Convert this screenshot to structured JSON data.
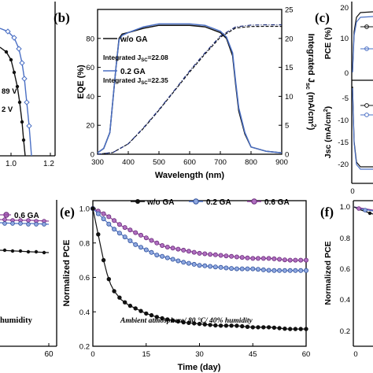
{
  "panels": {
    "a": {
      "voc_1": "89 V",
      "voc_2": "2 V",
      "x_ticks": [
        "1.0",
        "1.2"
      ]
    },
    "b": {
      "label": "(b)",
      "xlabel": "Wavelength (nm)",
      "ylabel": "EQE (%)",
      "y2label_main": "Integrated J",
      "y2label_sub": "sc",
      "y2label_end": " (mA/cm",
      "y2label_sup": "2",
      "y2label_close": ")",
      "x_ticks": [
        "300",
        "400",
        "500",
        "600",
        "700",
        "800",
        "900"
      ],
      "y_ticks": [
        "0",
        "20",
        "40",
        "60",
        "80"
      ],
      "y2_ticks": [
        "0",
        "5",
        "10",
        "15",
        "20",
        "25"
      ],
      "legend_wo": "w/o GA",
      "legend_02": "0.2 GA",
      "int_wo_main": "Integrated J",
      "int_wo_sub": "SC",
      "int_wo_val": "=22.08",
      "int_02_main": "Integrated J",
      "int_02_sub": "SC",
      "int_02_val": "=22.35"
    },
    "c": {
      "label": "(c)",
      "pce_label": "PCE (%)",
      "jsc_label_main": "Jsc (mA/cm",
      "jsc_label_sup": "2",
      "jsc_label_close": ")",
      "pce_ticks": [
        "20",
        "10",
        "0"
      ],
      "jsc_ticks": [
        "-5",
        "-10",
        "-15",
        "-20"
      ],
      "x_tick": "0"
    },
    "d": {
      "legend_06": "0.6 GA",
      "note": "humidity",
      "x_tick": "60"
    },
    "e": {
      "label": "(e)",
      "xlabel": "Time (day)",
      "ylabel": "Normalized PCE",
      "x_ticks": [
        "0",
        "15",
        "30",
        "45",
        "60"
      ],
      "y_ticks": [
        "0.2",
        "0.4",
        "0.6",
        "0.8",
        "1.0"
      ],
      "legend": [
        "w/o GA",
        "0.2 GA",
        "0.6 GA"
      ],
      "annotation": "Ambient atmosphere/ 80 °C/ 40% humidity"
    },
    "f": {
      "label": "(f)",
      "ylabel": "Normalized PCE",
      "y_ticks": [
        "1.0",
        "0.8",
        "0.6",
        "0.4",
        "0.2"
      ],
      "x_tick": "0"
    }
  },
  "colors": {
    "wo": "#111111",
    "ga02": "#4a6fc4",
    "ga06": "#8e3f9a"
  },
  "chart_data": [
    {
      "type": "line",
      "panel": "b",
      "title": "",
      "xlabel": "Wavelength (nm)",
      "ylabel": "EQE (%)",
      "xlim": [
        300,
        900
      ],
      "ylim": [
        0,
        100
      ],
      "y2lim": [
        0,
        25
      ],
      "series": [
        {
          "name": "w/o GA",
          "axis": "left",
          "x": [
            300,
            320,
            340,
            360,
            370,
            380,
            400,
            450,
            500,
            550,
            600,
            650,
            700,
            720,
            740,
            750,
            760,
            780,
            800,
            850,
            900
          ],
          "y": [
            1,
            4,
            15,
            60,
            80,
            83,
            84,
            87,
            89,
            89,
            89,
            88,
            84,
            80,
            68,
            48,
            30,
            14,
            5,
            2,
            1
          ]
        },
        {
          "name": "0.2 GA",
          "axis": "left",
          "x": [
            300,
            320,
            340,
            360,
            370,
            380,
            400,
            450,
            500,
            550,
            600,
            650,
            700,
            720,
            740,
            750,
            760,
            780,
            800,
            850,
            900
          ],
          "y": [
            1,
            4,
            15,
            60,
            79,
            82,
            84,
            88,
            90,
            90,
            90,
            89,
            85,
            81,
            70,
            50,
            32,
            15,
            5,
            2,
            1
          ]
        },
        {
          "name": "w/o GA",
          "axis": "right",
          "x": [
            300,
            350,
            400,
            450,
            500,
            550,
            600,
            650,
            700,
            750,
            800,
            850,
            900
          ],
          "y": [
            0,
            0.3,
            1.8,
            4.5,
            7.6,
            10.9,
            14.2,
            17.3,
            20.2,
            21.8,
            22.05,
            22.08,
            22.08
          ]
        },
        {
          "name": "0.2 GA",
          "axis": "right",
          "x": [
            300,
            350,
            400,
            450,
            500,
            550,
            600,
            650,
            700,
            750,
            800,
            850,
            900
          ],
          "y": [
            0,
            0.3,
            1.8,
            4.6,
            7.7,
            11.0,
            14.4,
            17.5,
            20.4,
            22.0,
            22.3,
            22.35,
            22.35
          ]
        }
      ]
    },
    {
      "type": "line",
      "panel": "e",
      "title": "",
      "xlabel": "Time (day)",
      "ylabel": "Normalized PCE",
      "xlim": [
        0,
        60
      ],
      "ylim": [
        0.2,
        1.0
      ],
      "series": [
        {
          "name": "w/o GA",
          "x": [
            0,
            1,
            2,
            3,
            4,
            5,
            6,
            8,
            10,
            12,
            15,
            18,
            20,
            25,
            30,
            35,
            40,
            45,
            50,
            55,
            60
          ],
          "y": [
            1.0,
            0.9,
            0.8,
            0.7,
            0.62,
            0.56,
            0.52,
            0.47,
            0.44,
            0.42,
            0.39,
            0.37,
            0.36,
            0.34,
            0.33,
            0.32,
            0.32,
            0.31,
            0.31,
            0.3,
            0.3
          ]
        },
        {
          "name": "0.2 GA",
          "x": [
            0,
            2,
            4,
            6,
            8,
            10,
            12,
            15,
            18,
            20,
            25,
            30,
            35,
            40,
            45,
            50,
            55,
            60
          ],
          "y": [
            1.0,
            0.96,
            0.92,
            0.88,
            0.85,
            0.82,
            0.79,
            0.76,
            0.73,
            0.72,
            0.69,
            0.67,
            0.66,
            0.65,
            0.65,
            0.64,
            0.64,
            0.64
          ]
        },
        {
          "name": "0.6 GA",
          "x": [
            0,
            2,
            4,
            6,
            8,
            10,
            12,
            15,
            18,
            20,
            25,
            30,
            35,
            40,
            45,
            50,
            55,
            60
          ],
          "y": [
            1.0,
            0.98,
            0.96,
            0.93,
            0.9,
            0.88,
            0.86,
            0.83,
            0.8,
            0.78,
            0.76,
            0.74,
            0.73,
            0.72,
            0.71,
            0.71,
            0.7,
            0.7
          ]
        }
      ]
    }
  ]
}
